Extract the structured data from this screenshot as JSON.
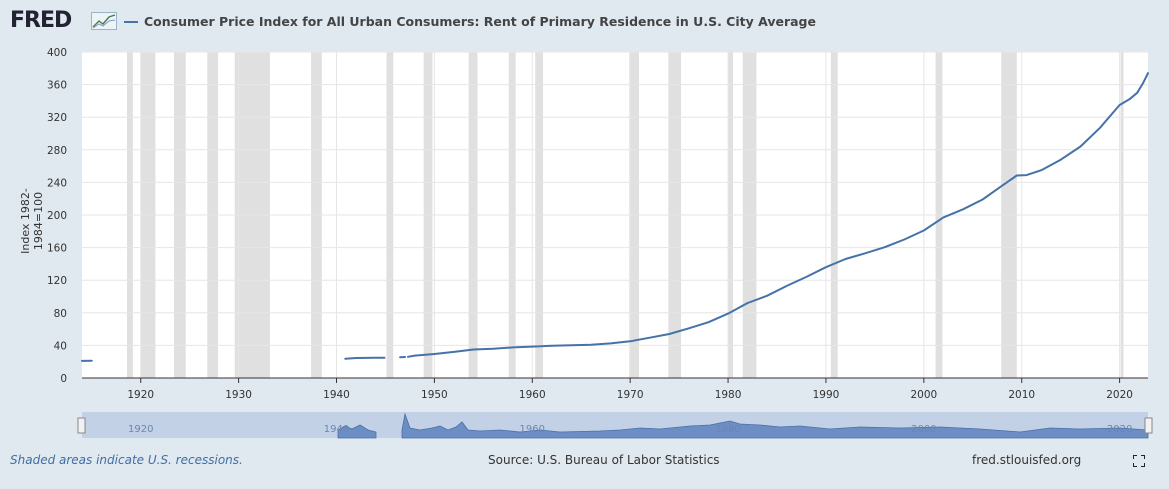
{
  "header": {
    "logo_text": "FRED",
    "logo_icon": "trend-graph-icon",
    "series_title": "Consumer Price Index for All Urban Consumers: Rent of Primary Residence in U.S. City Average"
  },
  "footer": {
    "recession_note": "Shaded areas indicate U.S. recessions.",
    "source": "Source: U.S. Bureau of Labor Statistics",
    "site": "fred.stlouisfed.org",
    "fullscreen_icon": "expand-icon"
  },
  "navigator": {
    "labels": [
      "1920",
      "1940",
      "1960",
      "1980",
      "2000",
      "2020"
    ]
  },
  "colors": {
    "series": "#4572a7",
    "recession": "#e0e0e0",
    "background": "#e1e9f0"
  },
  "chart_data": {
    "type": "line",
    "title": "Consumer Price Index for All Urban Consumers: Rent of Primary Residence in U.S. City Average",
    "xlabel": "",
    "ylabel": "Index 1982-1984=100",
    "xlim": [
      1914.0,
      2022.9
    ],
    "ylim": [
      0,
      400
    ],
    "yticks": [
      0,
      40,
      80,
      120,
      160,
      200,
      240,
      280,
      320,
      360,
      400
    ],
    "xticks": [
      1920,
      1930,
      1940,
      1950,
      1960,
      1970,
      1980,
      1990,
      2000,
      2010,
      2020
    ],
    "grid": true,
    "legend": "top-left",
    "recessions": [
      [
        1918.6,
        1919.2
      ],
      [
        1920.0,
        1921.5
      ],
      [
        1923.4,
        1924.6
      ],
      [
        1926.8,
        1927.9
      ],
      [
        1929.6,
        1933.2
      ],
      [
        1937.4,
        1938.5
      ],
      [
        1945.1,
        1945.8
      ],
      [
        1948.9,
        1949.8
      ],
      [
        1953.5,
        1954.4
      ],
      [
        1957.6,
        1958.3
      ],
      [
        1960.3,
        1961.1
      ],
      [
        1969.9,
        1970.9
      ],
      [
        1973.9,
        1975.2
      ],
      [
        1980.0,
        1980.5
      ],
      [
        1981.5,
        1982.9
      ],
      [
        1990.5,
        1991.2
      ],
      [
        2001.2,
        2001.9
      ],
      [
        2007.9,
        2009.5
      ],
      [
        2020.1,
        2020.4
      ]
    ],
    "series": [
      {
        "segments": [
          [
            [
              1914.0,
              21.0
            ],
            [
              1915.0,
              21.2
            ]
          ],
          [
            [
              1940.9,
              23.5
            ],
            [
              1942.0,
              24.5
            ],
            [
              1943.0,
              24.7
            ],
            [
              1944.0,
              24.8
            ],
            [
              1944.9,
              24.9
            ]
          ],
          [
            [
              1946.5,
              25.5
            ],
            [
              1947.0,
              25.8
            ]
          ],
          [
            [
              1947.3,
              26.0
            ],
            [
              1948.0,
              27.5
            ],
            [
              1950.0,
              29.5
            ],
            [
              1952.0,
              32.0
            ],
            [
              1954.0,
              35.0
            ],
            [
              1956.0,
              36.0
            ],
            [
              1958.0,
              37.5
            ],
            [
              1960.0,
              38.5
            ],
            [
              1962.0,
              39.5
            ],
            [
              1964.0,
              40.2
            ],
            [
              1966.0,
              40.8
            ],
            [
              1968.0,
              42.5
            ],
            [
              1970.0,
              45.0
            ],
            [
              1972.0,
              49.5
            ],
            [
              1974.0,
              54.0
            ],
            [
              1976.0,
              61.0
            ],
            [
              1978.0,
              68.5
            ],
            [
              1980.0,
              79.0
            ],
            [
              1982.0,
              92.0
            ],
            [
              1984.0,
              101.0
            ],
            [
              1986.0,
              113.0
            ],
            [
              1988.0,
              124.0
            ],
            [
              1990.0,
              136.0
            ],
            [
              1992.0,
              146.0
            ],
            [
              1994.0,
              153.0
            ],
            [
              1996.0,
              160.5
            ],
            [
              1998.0,
              170.0
            ],
            [
              2000.0,
              181.0
            ],
            [
              2002.0,
              197.0
            ],
            [
              2004.0,
              207.0
            ],
            [
              2006.0,
              219.0
            ],
            [
              2008.0,
              236.0
            ],
            [
              2009.5,
              248.5
            ],
            [
              2010.5,
              249.0
            ],
            [
              2012.0,
              255.0
            ],
            [
              2014.0,
              268.0
            ],
            [
              2016.0,
              284.0
            ],
            [
              2018.0,
              307.0
            ],
            [
              2020.0,
              335.0
            ],
            [
              2021.0,
              342.0
            ],
            [
              2021.8,
              350.0
            ],
            [
              2022.4,
              362.0
            ],
            [
              2022.9,
              374.0
            ]
          ]
        ]
      }
    ]
  }
}
